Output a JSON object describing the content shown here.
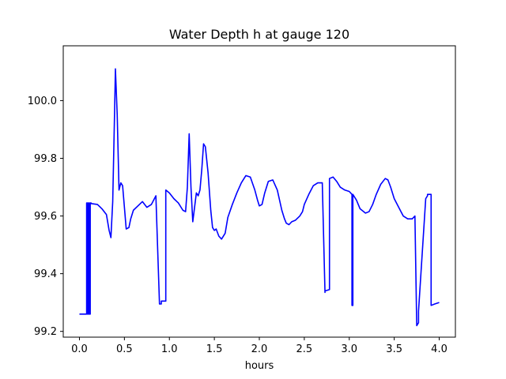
{
  "chart_data": {
    "type": "line",
    "title": "Water Depth h at gauge 120",
    "xlabel": "hours",
    "ylabel": "",
    "xlim": [
      -0.18,
      4.18
    ],
    "ylim": [
      99.18,
      100.19
    ],
    "x_ticks": [
      0.0,
      0.5,
      1.0,
      1.5,
      2.0,
      2.5,
      3.0,
      3.5,
      4.0
    ],
    "x_tick_labels": [
      "0.0",
      "0.5",
      "1.0",
      "1.5",
      "2.0",
      "2.5",
      "3.0",
      "3.5",
      "4.0"
    ],
    "y_ticks": [
      99.2,
      99.4,
      99.6,
      99.8,
      100.0
    ],
    "y_tick_labels": [
      "99.2",
      "99.4",
      "99.6",
      "99.8",
      "100.0"
    ],
    "grid": false,
    "legend": "none",
    "series": [
      {
        "color": "#0000ff",
        "x": [
          0.0,
          0.08,
          0.08,
          0.09,
          0.09,
          0.1,
          0.1,
          0.11,
          0.11,
          0.12,
          0.12,
          0.13,
          0.13,
          0.2,
          0.25,
          0.3,
          0.33,
          0.35,
          0.37,
          0.39,
          0.4,
          0.42,
          0.44,
          0.46,
          0.48,
          0.5,
          0.52,
          0.55,
          0.57,
          0.6,
          0.65,
          0.7,
          0.75,
          0.8,
          0.85,
          0.89,
          0.91,
          0.91,
          0.96,
          0.96,
          1.0,
          1.05,
          1.1,
          1.15,
          1.18,
          1.2,
          1.22,
          1.24,
          1.26,
          1.28,
          1.3,
          1.32,
          1.34,
          1.36,
          1.38,
          1.4,
          1.43,
          1.46,
          1.48,
          1.5,
          1.52,
          1.55,
          1.58,
          1.62,
          1.65,
          1.7,
          1.75,
          1.8,
          1.85,
          1.9,
          1.95,
          1.98,
          2.0,
          2.03,
          2.06,
          2.1,
          2.15,
          2.2,
          2.25,
          2.28,
          2.3,
          2.33,
          2.36,
          2.4,
          2.45,
          2.48,
          2.5,
          2.55,
          2.6,
          2.65,
          2.7,
          2.73,
          2.73,
          2.78,
          2.78,
          2.82,
          2.86,
          2.9,
          2.95,
          3.0,
          3.03,
          3.03,
          3.04,
          3.04,
          3.08,
          3.12,
          3.18,
          3.22,
          3.26,
          3.3,
          3.35,
          3.4,
          3.43,
          3.46,
          3.5,
          3.55,
          3.6,
          3.65,
          3.7,
          3.73,
          3.75,
          3.77,
          3.77,
          3.85,
          3.87,
          3.87,
          3.9,
          3.91,
          3.91,
          3.95,
          4.0
        ],
        "y": [
          99.26,
          99.26,
          99.645,
          99.645,
          99.26,
          99.26,
          99.645,
          99.645,
          99.26,
          99.26,
          99.645,
          99.645,
          99.643,
          99.64,
          99.625,
          99.605,
          99.55,
          99.525,
          99.65,
          99.95,
          100.11,
          99.95,
          99.69,
          99.715,
          99.705,
          99.63,
          99.555,
          99.56,
          99.59,
          99.62,
          99.635,
          99.65,
          99.63,
          99.64,
          99.67,
          99.295,
          99.295,
          99.305,
          99.305,
          99.69,
          99.68,
          99.66,
          99.645,
          99.62,
          99.615,
          99.7,
          99.885,
          99.7,
          99.58,
          99.63,
          99.68,
          99.67,
          99.69,
          99.76,
          99.85,
          99.84,
          99.75,
          99.62,
          99.56,
          99.55,
          99.555,
          99.53,
          99.52,
          99.54,
          99.595,
          99.64,
          99.68,
          99.715,
          99.74,
          99.735,
          99.69,
          99.655,
          99.635,
          99.64,
          99.68,
          99.72,
          99.725,
          99.69,
          99.62,
          99.59,
          99.575,
          99.57,
          99.58,
          99.585,
          99.6,
          99.615,
          99.64,
          99.675,
          99.705,
          99.715,
          99.715,
          99.335,
          99.34,
          99.345,
          99.73,
          99.735,
          99.72,
          99.7,
          99.69,
          99.685,
          99.675,
          99.29,
          99.29,
          99.675,
          99.655,
          99.625,
          99.61,
          99.615,
          99.64,
          99.675,
          99.71,
          99.73,
          99.725,
          99.7,
          99.66,
          99.63,
          99.6,
          99.59,
          99.59,
          99.6,
          99.22,
          99.23,
          99.27,
          99.66,
          99.67,
          99.675,
          99.675,
          99.675,
          99.29,
          99.295,
          99.3
        ]
      }
    ]
  }
}
